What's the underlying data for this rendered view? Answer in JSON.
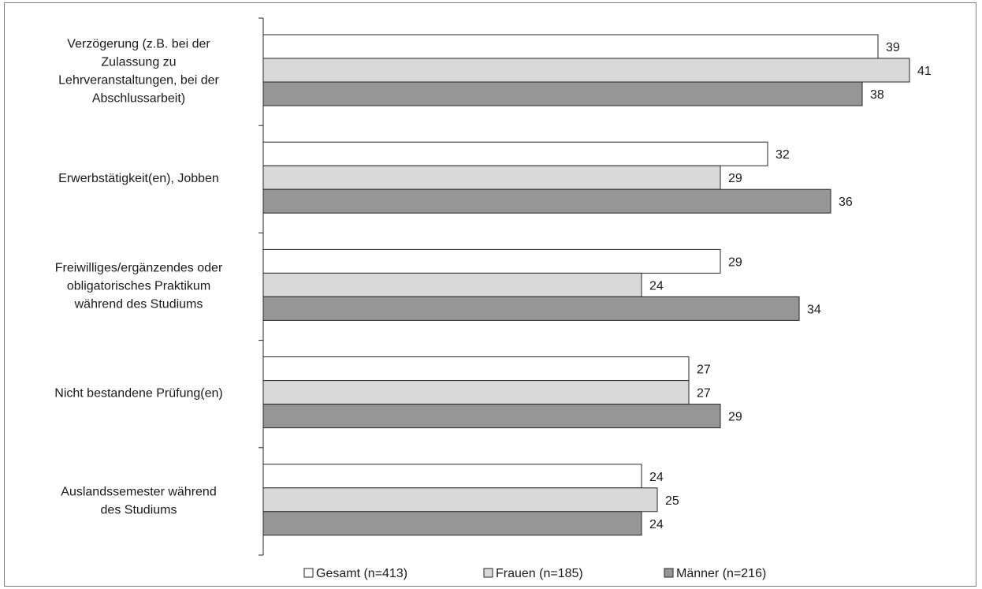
{
  "chart_data": {
    "type": "bar",
    "orientation": "horizontal",
    "title": "",
    "xlabel": "",
    "ylabel": "",
    "categories": [
      [
        "Verzögerung (z.B. bei der",
        "Zulassung zu",
        "Lehrveranstaltungen, bei der",
        "Abschlussarbeit)"
      ],
      [
        "Erwerbstätigkeit(en), Jobben"
      ],
      [
        "Freiwilliges/ergänzendes oder",
        "obligatorisches Praktikum",
        "während des Studiums"
      ],
      [
        "Nicht bestandene Prüfung(en)"
      ],
      [
        "Auslandssemester während",
        "des Studiums"
      ]
    ],
    "series": [
      {
        "name": "Gesamt (n=413)",
        "values": [
          39,
          32,
          29,
          27,
          24
        ],
        "color": "#ffffff"
      },
      {
        "name": "Frauen (n=185)",
        "values": [
          41,
          29,
          24,
          27,
          25
        ],
        "color": "#d9d9d9"
      },
      {
        "name": "Männer (n=216)",
        "values": [
          38,
          36,
          34,
          29,
          24
        ],
        "color": "#969696"
      }
    ],
    "xlim": [
      0,
      41
    ],
    "bar_edge_color": "#262626",
    "grid": false,
    "x_axis_shown": false,
    "legend_position": "bottom",
    "data_labels": true
  }
}
